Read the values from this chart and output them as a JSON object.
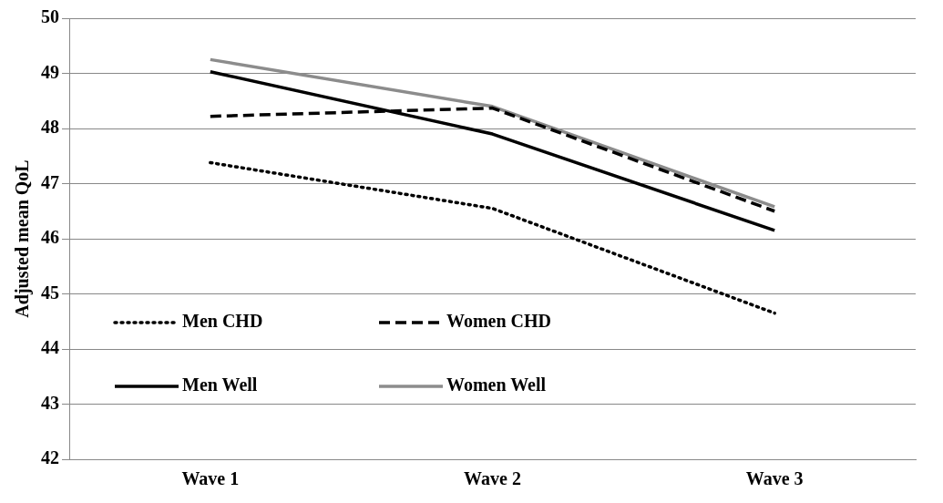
{
  "chart_data": {
    "type": "line",
    "ylabel": "Adjusted mean QoL",
    "categories": [
      "Wave 1",
      "Wave 2",
      "Wave 3"
    ],
    "series": [
      {
        "name": "Men CHD",
        "color": "#000000",
        "line_style": "dotted",
        "values": [
          47.38,
          46.55,
          44.65
        ]
      },
      {
        "name": "Women CHD",
        "color": "#000000",
        "line_style": "dashed",
        "values": [
          48.22,
          48.37,
          46.5
        ]
      },
      {
        "name": "Men Well",
        "color": "#000000",
        "line_style": "solid",
        "values": [
          49.03,
          47.9,
          46.15
        ]
      },
      {
        "name": "Women Well",
        "color": "#8c8c8c",
        "line_style": "solid",
        "values": [
          49.25,
          48.4,
          46.58
        ]
      }
    ],
    "ylim": [
      42,
      50
    ],
    "yticks": [
      42,
      43,
      44,
      45,
      46,
      47,
      48,
      49,
      50
    ],
    "grid": "y",
    "legend": "bottom left",
    "marker": "none"
  }
}
